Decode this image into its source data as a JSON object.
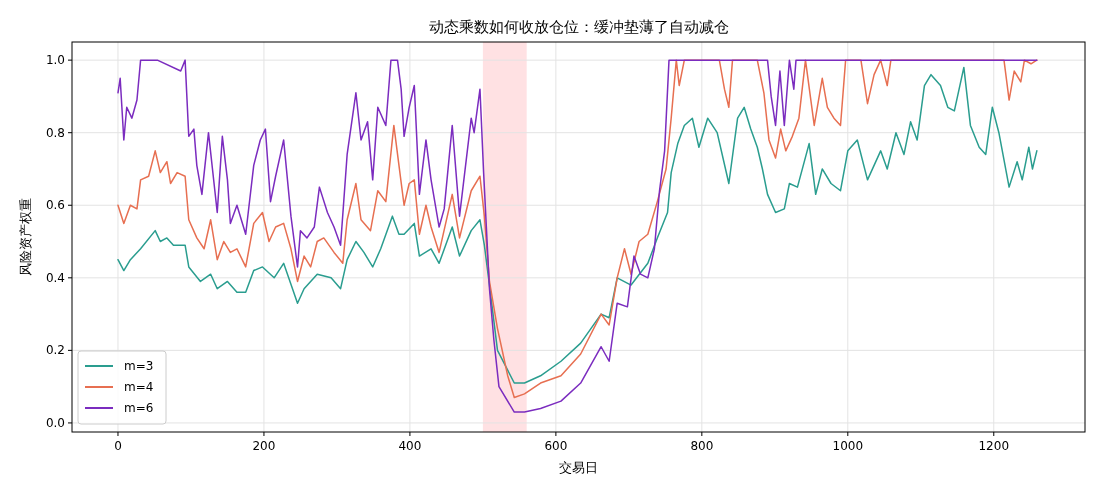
{
  "chart_data": {
    "type": "line",
    "title": "动态乘数如何收放仓位：缓冲垫薄了自动减仓",
    "xlabel": "交易日",
    "ylabel": "风险资产权重",
    "xlim": [
      -63,
      1325
    ],
    "ylim": [
      -0.025,
      1.05
    ],
    "xticks": [
      0,
      200,
      400,
      600,
      800,
      1000,
      1200
    ],
    "yticks": [
      {
        "value": 0,
        "label": "0.0"
      },
      {
        "value": 0.2,
        "label": "0.2"
      },
      {
        "value": 0.4,
        "label": "0.4"
      },
      {
        "value": 0.6,
        "label": "0.6"
      },
      {
        "value": 0.8,
        "label": "0.8"
      },
      {
        "value": 1,
        "label": "1.0"
      }
    ],
    "grid": true,
    "legend": "bottom left",
    "bands": [
      {
        "axis": "x",
        "from": 500,
        "to": 560,
        "color": "#ffe1e3"
      }
    ],
    "series": [
      {
        "name": "m=3",
        "color": "#2a9d8f",
        "x": [
          0,
          8,
          17,
          31,
          51,
          58,
          67,
          76,
          92,
          97,
          113,
          127,
          136,
          150,
          163,
          175,
          186,
          198,
          214,
          227,
          246,
          255,
          273,
          292,
          305,
          314,
          326,
          337,
          349,
          360,
          376,
          385,
          392,
          406,
          413,
          429,
          440,
          458,
          468,
          484,
          496,
          502,
          509,
          520,
          543,
          557,
          579,
          607,
          634,
          662,
          673,
          684,
          703,
          726,
          739,
          753,
          758,
          767,
          776,
          787,
          796,
          808,
          821,
          837,
          849,
          858,
          867,
          876,
          883,
          890,
          901,
          913,
          920,
          931,
          947,
          956,
          965,
          977,
          990,
          1000,
          1013,
          1027,
          1045,
          1054,
          1066,
          1077,
          1086,
          1095,
          1105,
          1114,
          1127,
          1137,
          1146,
          1159,
          1168,
          1180,
          1189,
          1198,
          1207,
          1221,
          1232,
          1239,
          1248,
          1253,
          1259
        ],
        "values": [
          0.45,
          0.42,
          0.45,
          0.48,
          0.53,
          0.5,
          0.51,
          0.49,
          0.49,
          0.43,
          0.39,
          0.41,
          0.37,
          0.39,
          0.36,
          0.36,
          0.42,
          0.43,
          0.4,
          0.44,
          0.33,
          0.37,
          0.41,
          0.4,
          0.37,
          0.45,
          0.5,
          0.47,
          0.43,
          0.48,
          0.57,
          0.52,
          0.52,
          0.55,
          0.46,
          0.48,
          0.44,
          0.54,
          0.46,
          0.53,
          0.56,
          0.49,
          0.38,
          0.2,
          0.11,
          0.11,
          0.13,
          0.17,
          0.22,
          0.3,
          0.29,
          0.4,
          0.38,
          0.44,
          0.51,
          0.58,
          0.69,
          0.77,
          0.82,
          0.84,
          0.76,
          0.84,
          0.8,
          0.66,
          0.84,
          0.87,
          0.81,
          0.76,
          0.7,
          0.63,
          0.58,
          0.59,
          0.66,
          0.65,
          0.77,
          0.63,
          0.7,
          0.66,
          0.64,
          0.75,
          0.78,
          0.67,
          0.75,
          0.7,
          0.8,
          0.74,
          0.83,
          0.78,
          0.93,
          0.96,
          0.93,
          0.87,
          0.86,
          0.98,
          0.82,
          0.76,
          0.74,
          0.87,
          0.8,
          0.65,
          0.72,
          0.67,
          0.76,
          0.7,
          0.75
        ]
      },
      {
        "name": "m=4",
        "color": "#e76f51",
        "x": [
          0,
          8,
          17,
          26,
          31,
          42,
          51,
          58,
          67,
          72,
          81,
          92,
          97,
          108,
          118,
          127,
          136,
          145,
          154,
          163,
          175,
          186,
          198,
          207,
          216,
          227,
          237,
          246,
          255,
          264,
          273,
          282,
          296,
          308,
          314,
          326,
          333,
          346,
          356,
          367,
          378,
          385,
          392,
          399,
          406,
          413,
          422,
          429,
          440,
          458,
          468,
          484,
          496,
          502,
          509,
          520,
          534,
          543,
          557,
          579,
          607,
          634,
          662,
          673,
          684,
          694,
          703,
          714,
          726,
          739,
          751,
          758,
          765,
          769,
          776,
          824,
          831,
          837,
          842,
          876,
          885,
          892,
          901,
          908,
          915,
          924,
          933,
          942,
          954,
          965,
          972,
          981,
          990,
          997,
          1018,
          1027,
          1036,
          1045,
          1054,
          1059,
          1214,
          1221,
          1228,
          1237,
          1242,
          1251,
          1259
        ],
        "values": [
          0.6,
          0.55,
          0.6,
          0.59,
          0.67,
          0.68,
          0.75,
          0.69,
          0.72,
          0.66,
          0.69,
          0.68,
          0.56,
          0.51,
          0.48,
          0.56,
          0.45,
          0.5,
          0.47,
          0.48,
          0.43,
          0.55,
          0.58,
          0.5,
          0.54,
          0.55,
          0.48,
          0.39,
          0.46,
          0.43,
          0.5,
          0.51,
          0.47,
          0.44,
          0.56,
          0.66,
          0.56,
          0.53,
          0.64,
          0.61,
          0.82,
          0.71,
          0.6,
          0.66,
          0.67,
          0.52,
          0.6,
          0.54,
          0.47,
          0.63,
          0.51,
          0.64,
          0.68,
          0.57,
          0.39,
          0.26,
          0.13,
          0.07,
          0.08,
          0.11,
          0.13,
          0.19,
          0.3,
          0.27,
          0.4,
          0.48,
          0.41,
          0.5,
          0.52,
          0.61,
          0.7,
          0.84,
          1.0,
          0.93,
          1.0,
          1.0,
          0.92,
          0.87,
          1.0,
          1.0,
          0.91,
          0.78,
          0.73,
          0.81,
          0.75,
          0.79,
          0.84,
          1.0,
          0.82,
          0.95,
          0.87,
          0.84,
          0.82,
          1.0,
          1.0,
          0.88,
          0.96,
          1.0,
          0.93,
          1.0,
          1.0,
          0.89,
          0.97,
          0.94,
          1.0,
          0.99,
          1.0
        ]
      },
      {
        "name": "m=6",
        "color": "#7b2cbf",
        "x": [
          0,
          3,
          8,
          12,
          19,
          26,
          31,
          54,
          86,
          92,
          97,
          104,
          108,
          115,
          124,
          136,
          143,
          150,
          154,
          163,
          175,
          186,
          195,
          202,
          209,
          216,
          227,
          237,
          246,
          250,
          259,
          269,
          276,
          287,
          296,
          305,
          314,
          326,
          333,
          342,
          349,
          356,
          367,
          374,
          383,
          388,
          392,
          399,
          406,
          413,
          422,
          429,
          440,
          447,
          458,
          468,
          484,
          488,
          496,
          501,
          509,
          515,
          522,
          543,
          557,
          579,
          607,
          634,
          662,
          673,
          684,
          698,
          707,
          716,
          726,
          735,
          742,
          749,
          755,
          890,
          895,
          901,
          907,
          913,
          920,
          926,
          929,
          1259
        ],
        "values": [
          0.91,
          0.95,
          0.78,
          0.87,
          0.84,
          0.89,
          1.0,
          1.0,
          0.97,
          1.0,
          0.79,
          0.81,
          0.71,
          0.63,
          0.8,
          0.58,
          0.79,
          0.67,
          0.55,
          0.6,
          0.52,
          0.71,
          0.78,
          0.81,
          0.61,
          0.68,
          0.78,
          0.57,
          0.43,
          0.53,
          0.51,
          0.54,
          0.65,
          0.58,
          0.54,
          0.49,
          0.74,
          0.91,
          0.78,
          0.83,
          0.67,
          0.87,
          0.82,
          1.0,
          1.0,
          0.92,
          0.79,
          0.87,
          0.93,
          0.63,
          0.78,
          0.67,
          0.54,
          0.59,
          0.82,
          0.57,
          0.84,
          0.8,
          0.92,
          0.69,
          0.37,
          0.23,
          0.1,
          0.03,
          0.03,
          0.04,
          0.06,
          0.11,
          0.21,
          0.17,
          0.33,
          0.32,
          0.46,
          0.41,
          0.4,
          0.48,
          0.64,
          0.75,
          1.0,
          1.0,
          0.9,
          0.82,
          0.97,
          0.82,
          1.0,
          0.92,
          1.0,
          1.0
        ]
      }
    ]
  }
}
